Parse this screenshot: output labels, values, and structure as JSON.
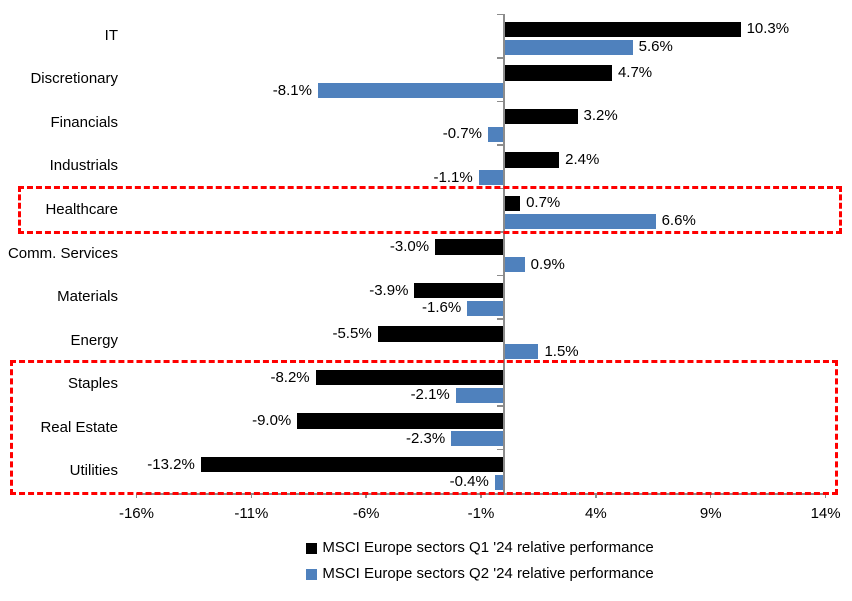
{
  "chart_data": {
    "type": "bar",
    "orientation": "horizontal",
    "title": "",
    "categories": [
      "IT",
      "Discretionary",
      "Financials",
      "Industrials",
      "Healthcare",
      "Comm. Services",
      "Materials",
      "Energy",
      "Staples",
      "Real Estate",
      "Utilities"
    ],
    "series": [
      {
        "name": "MSCI Europe sectors Q1 '24 relative performance",
        "color": "#000000",
        "values": [
          10.3,
          4.7,
          3.2,
          2.4,
          0.7,
          -3.0,
          -3.9,
          -5.5,
          -8.2,
          -9.0,
          -13.2
        ],
        "labels": [
          "10.3%",
          "4.7%",
          "3.2%",
          "2.4%",
          "0.7%",
          "-3.0%",
          "-3.9%",
          "-5.5%",
          "-8.2%",
          "-9.0%",
          "-13.2%"
        ]
      },
      {
        "name": "MSCI Europe sectors Q2 '24 relative performance",
        "color": "#4F81BD",
        "values": [
          5.6,
          -8.1,
          -0.7,
          -1.1,
          6.6,
          0.9,
          -1.6,
          1.5,
          -2.1,
          -2.3,
          -0.4
        ],
        "labels": [
          "5.6%",
          "-8.1%",
          "-0.7%",
          "-1.1%",
          "6.6%",
          "0.9%",
          "-1.6%",
          "1.5%",
          "-2.1%",
          "-2.3%",
          "-0.4%"
        ]
      }
    ],
    "x_axis": {
      "tick_labels": [
        "-16%",
        "-11%",
        "-6%",
        "-1%",
        "4%",
        "9%",
        "14%"
      ],
      "tick_values": [
        -16,
        -11,
        -6,
        -1,
        4,
        9,
        14
      ],
      "min": -16,
      "max": 14
    },
    "ylabel": "",
    "xlabel": "",
    "grid": false,
    "legend_position": "bottom",
    "axis_color": "#8C8C8C",
    "highlight_color": "#FF0000",
    "highlights": [
      {
        "name": "highlight-box-healthcare",
        "categories": [
          "Healthcare"
        ]
      },
      {
        "name": "highlight-box-staples-realestate-utilities",
        "categories": [
          "Staples",
          "Real Estate",
          "Utilities"
        ]
      }
    ]
  }
}
